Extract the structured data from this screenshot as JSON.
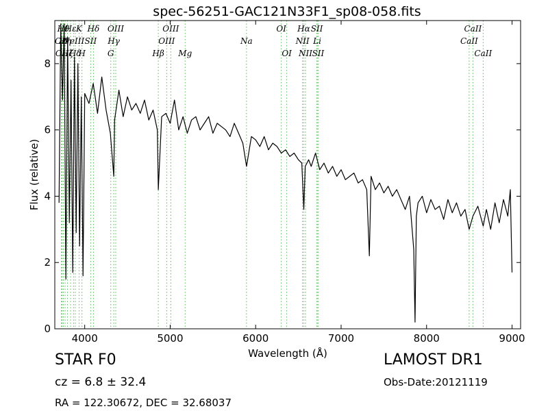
{
  "chart_data": {
    "type": "line",
    "title": "spec-56251-GAC121N33F1_sp08-058.fits",
    "xlabel": "Wavelength (Å)",
    "ylabel": "Flux (relative)",
    "xlim": [
      3650,
      9100
    ],
    "ylim": [
      0,
      9.3
    ],
    "xticks": [
      4000,
      5000,
      6000,
      7000,
      8000,
      9000
    ],
    "yticks": [
      0,
      2,
      4,
      6,
      8
    ],
    "grid": false,
    "series": [
      {
        "color": "#000000",
        "x": [
          3700,
          3720,
          3740,
          3760,
          3780,
          3800,
          3820,
          3840,
          3860,
          3880,
          3900,
          3920,
          3940,
          3960,
          3980,
          4000,
          4050,
          4100,
          4150,
          4200,
          4250,
          4300,
          4340,
          4350,
          4400,
          4450,
          4500,
          4550,
          4600,
          4650,
          4700,
          4750,
          4800,
          4850,
          4861,
          4900,
          4950,
          5000,
          5050,
          5100,
          5150,
          5200,
          5250,
          5300,
          5350,
          5400,
          5450,
          5500,
          5550,
          5600,
          5650,
          5700,
          5750,
          5800,
          5850,
          5893,
          5950,
          6000,
          6050,
          6100,
          6150,
          6200,
          6250,
          6300,
          6350,
          6400,
          6450,
          6500,
          6540,
          6563,
          6580,
          6620,
          6650,
          6700,
          6750,
          6800,
          6850,
          6900,
          6950,
          7000,
          7050,
          7100,
          7150,
          7200,
          7250,
          7300,
          7330,
          7350,
          7400,
          7450,
          7500,
          7550,
          7600,
          7650,
          7700,
          7750,
          7800,
          7850,
          7865,
          7880,
          7900,
          7950,
          8000,
          8050,
          8100,
          8150,
          8200,
          8250,
          8300,
          8350,
          8400,
          8450,
          8498,
          8542,
          8600,
          8662,
          8700,
          8750,
          8800,
          8850,
          8900,
          8950,
          8980,
          9000
        ],
        "y": [
          3.8,
          9.2,
          6.9,
          9.2,
          1.5,
          8.8,
          3.2,
          7.5,
          1.7,
          8.2,
          2.9,
          8.0,
          2.5,
          7.0,
          1.6,
          7.1,
          6.8,
          7.4,
          6.5,
          7.6,
          6.6,
          5.9,
          4.6,
          6.3,
          7.2,
          6.4,
          7.0,
          6.6,
          6.8,
          6.5,
          6.9,
          6.3,
          6.6,
          6.0,
          4.2,
          6.4,
          6.5,
          6.2,
          6.9,
          6.0,
          6.4,
          5.9,
          6.3,
          6.4,
          6.0,
          6.2,
          6.4,
          5.9,
          6.2,
          6.1,
          6.0,
          5.8,
          6.2,
          5.9,
          5.6,
          4.9,
          5.8,
          5.7,
          5.5,
          5.8,
          5.4,
          5.6,
          5.5,
          5.3,
          5.4,
          5.2,
          5.3,
          5.1,
          5.0,
          3.6,
          4.9,
          5.1,
          4.9,
          5.3,
          4.8,
          5.0,
          4.7,
          4.9,
          4.6,
          4.8,
          4.5,
          4.6,
          4.7,
          4.4,
          4.5,
          4.2,
          2.2,
          4.6,
          4.2,
          4.4,
          4.1,
          4.3,
          4.0,
          4.2,
          3.9,
          3.6,
          4.0,
          2.4,
          0.2,
          3.4,
          3.8,
          4.0,
          3.5,
          3.9,
          3.6,
          3.7,
          3.3,
          3.9,
          3.5,
          3.8,
          3.4,
          3.6,
          3.0,
          3.4,
          3.7,
          3.1,
          3.6,
          3.0,
          3.8,
          3.2,
          3.9,
          3.4,
          4.2,
          1.7
        ]
      }
    ],
    "lines": [
      {
        "x": 3727,
        "label": "OII",
        "row": 1
      },
      {
        "x": 3734,
        "label": "OII",
        "row": 2
      },
      {
        "x": 3750,
        "label": "Hθ",
        "row": 0
      },
      {
        "x": 3771,
        "label": "Hη",
        "row": 1
      },
      {
        "x": 3798,
        "label": "Hζ",
        "row": 2
      },
      {
        "x": 3835,
        "label": "Hε",
        "row": 0
      },
      {
        "x": 3869,
        "label": "NeIII",
        "row": 1
      },
      {
        "x": 3889,
        "label": "Hδ",
        "row": 2
      },
      {
        "x": 3934,
        "label": "K",
        "row": 0
      },
      {
        "x": 3968,
        "label": "H",
        "row": 2
      },
      {
        "x": 4070,
        "label": "SII",
        "row": 1
      },
      {
        "x": 4102,
        "label": "Hδ",
        "row": 0
      },
      {
        "x": 4305,
        "label": "G",
        "row": 2
      },
      {
        "x": 4340,
        "label": "Hγ",
        "row": 1
      },
      {
        "x": 4363,
        "label": "OIII",
        "row": 0
      },
      {
        "x": 4861,
        "label": "Hβ",
        "row": 2
      },
      {
        "x": 4959,
        "label": "OIII",
        "row": 1
      },
      {
        "x": 5007,
        "label": "OIII",
        "row": 0
      },
      {
        "x": 5175,
        "label": "Mg",
        "row": 2
      },
      {
        "x": 5893,
        "label": "Na",
        "row": 1
      },
      {
        "x": 6300,
        "label": "OI",
        "row": 0
      },
      {
        "x": 6364,
        "label": "OI",
        "row": 2
      },
      {
        "x": 6548,
        "label": "NII",
        "row": 1
      },
      {
        "x": 6563,
        "label": "Hα",
        "row": 0
      },
      {
        "x": 6583,
        "label": "NII",
        "row": 2
      },
      {
        "x": 6716,
        "label": "SII",
        "row": 0
      },
      {
        "x": 6720,
        "label": "Li",
        "row": 1
      },
      {
        "x": 6731,
        "label": "SII",
        "row": 2
      },
      {
        "x": 8498,
        "label": "CaII",
        "row": 1
      },
      {
        "x": 8542,
        "label": "CaII",
        "row": 0
      },
      {
        "x": 8662,
        "label": "CaII",
        "row": 2
      }
    ]
  },
  "info": {
    "object_class": "STAR   F0",
    "survey": "LAMOST DR1",
    "redshift": "cz = 6.8 ± 32.4",
    "obs_date": "Obs-Date:20121119",
    "coords": "RA = 122.30672, DEC = 32.68037"
  },
  "colors": {
    "spectrum": "#000000",
    "line_markers": "#55bb55"
  }
}
